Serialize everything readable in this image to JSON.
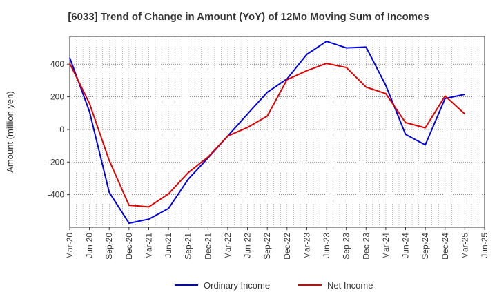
{
  "chart_data": {
    "type": "line",
    "title": "[6033]  Trend of Change in Amount (YoY) of 12Mo Moving Sum of Incomes",
    "ylabel": "Amount (million yen)",
    "xlabel": "",
    "ylim": [
      -600,
      570
    ],
    "yticks": [
      -400,
      -200,
      0,
      200,
      400
    ],
    "categories": [
      "Mar-20",
      "Jun-20",
      "Sep-20",
      "Dec-20",
      "Mar-21",
      "Jun-21",
      "Sep-21",
      "Dec-21",
      "Mar-22",
      "Jun-22",
      "Sep-22",
      "Dec-22",
      "Mar-23",
      "Jun-23",
      "Sep-23",
      "Dec-23",
      "Mar-24",
      "Jun-24",
      "Sep-24",
      "Dec-24",
      "Mar-25",
      "Jun-25"
    ],
    "grid": true,
    "legend_position": "bottom",
    "series": [
      {
        "name": "Ordinary Income",
        "color": "#0000dd",
        "values": [
          440,
          110,
          -385,
          -575,
          -550,
          -485,
          -305,
          -175,
          -40,
          95,
          228,
          310,
          460,
          540,
          500,
          505,
          270,
          -30,
          -95,
          190,
          215,
          null
        ]
      },
      {
        "name": "Net Income",
        "color": "#dd0000",
        "values": [
          405,
          160,
          -190,
          -465,
          -475,
          -395,
          -265,
          -170,
          -40,
          12,
          82,
          305,
          360,
          405,
          380,
          260,
          220,
          42,
          10,
          205,
          95,
          null
        ]
      }
    ]
  }
}
